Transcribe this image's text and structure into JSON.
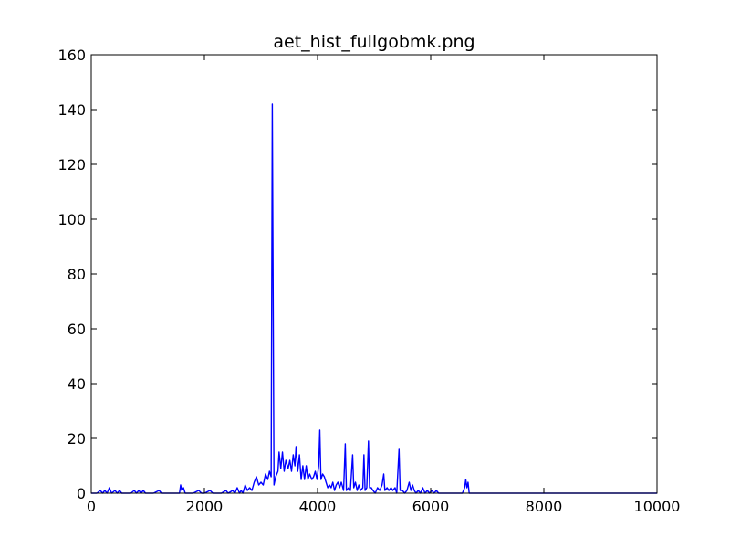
{
  "chart_data": {
    "type": "line",
    "title": "aet_hist_fullgobmk.png",
    "xlabel": "",
    "ylabel": "",
    "xlim": [
      0,
      10000
    ],
    "ylim": [
      0,
      160
    ],
    "x_ticks": [
      0,
      2000,
      4000,
      6000,
      8000,
      10000
    ],
    "y_ticks": [
      0,
      20,
      40,
      60,
      80,
      100,
      120,
      140,
      160
    ],
    "x_tick_labels": [
      "0",
      "2000",
      "4000",
      "6000",
      "8000",
      "10000"
    ],
    "y_tick_labels": [
      "0",
      "20",
      "40",
      "60",
      "80",
      "100",
      "120",
      "140",
      "160"
    ],
    "grid": false,
    "line_color": "#0000ff",
    "series": [
      {
        "points": [
          [
            0,
            0
          ],
          [
            100,
            0
          ],
          [
            160,
            1
          ],
          [
            200,
            0
          ],
          [
            240,
            1
          ],
          [
            280,
            0
          ],
          [
            320,
            2
          ],
          [
            360,
            0
          ],
          [
            420,
            1
          ],
          [
            460,
            0
          ],
          [
            500,
            1
          ],
          [
            540,
            0
          ],
          [
            600,
            0
          ],
          [
            700,
            0
          ],
          [
            760,
            1
          ],
          [
            800,
            0
          ],
          [
            840,
            1
          ],
          [
            880,
            0
          ],
          [
            920,
            1
          ],
          [
            960,
            0
          ],
          [
            1000,
            0
          ],
          [
            1100,
            0
          ],
          [
            1200,
            1
          ],
          [
            1240,
            0
          ],
          [
            1300,
            0
          ],
          [
            1400,
            0
          ],
          [
            1500,
            0
          ],
          [
            1560,
            0
          ],
          [
            1580,
            3
          ],
          [
            1600,
            1
          ],
          [
            1630,
            2
          ],
          [
            1660,
            0
          ],
          [
            1700,
            0
          ],
          [
            1800,
            0
          ],
          [
            1900,
            1
          ],
          [
            1950,
            0
          ],
          [
            2000,
            0
          ],
          [
            2100,
            1
          ],
          [
            2150,
            0
          ],
          [
            2200,
            0
          ],
          [
            2300,
            0
          ],
          [
            2380,
            1
          ],
          [
            2420,
            0
          ],
          [
            2500,
            1
          ],
          [
            2540,
            0
          ],
          [
            2580,
            2
          ],
          [
            2620,
            0
          ],
          [
            2650,
            1
          ],
          [
            2680,
            0
          ],
          [
            2720,
            3
          ],
          [
            2760,
            1
          ],
          [
            2800,
            2
          ],
          [
            2840,
            1
          ],
          [
            2880,
            4
          ],
          [
            2920,
            6
          ],
          [
            2960,
            3
          ],
          [
            3000,
            4
          ],
          [
            3040,
            3
          ],
          [
            3080,
            7
          ],
          [
            3120,
            5
          ],
          [
            3150,
            8
          ],
          [
            3180,
            6
          ],
          [
            3200,
            142
          ],
          [
            3230,
            3
          ],
          [
            3260,
            6
          ],
          [
            3300,
            8
          ],
          [
            3320,
            15
          ],
          [
            3350,
            9
          ],
          [
            3380,
            15
          ],
          [
            3410,
            8
          ],
          [
            3440,
            12
          ],
          [
            3480,
            9
          ],
          [
            3510,
            12
          ],
          [
            3540,
            8
          ],
          [
            3570,
            14
          ],
          [
            3600,
            10
          ],
          [
            3620,
            17
          ],
          [
            3650,
            8
          ],
          [
            3680,
            14
          ],
          [
            3710,
            5
          ],
          [
            3740,
            10
          ],
          [
            3770,
            5
          ],
          [
            3800,
            10
          ],
          [
            3830,
            5
          ],
          [
            3860,
            7
          ],
          [
            3900,
            5
          ],
          [
            3930,
            6
          ],
          [
            3960,
            8
          ],
          [
            3990,
            5
          ],
          [
            4020,
            10
          ],
          [
            4040,
            23
          ],
          [
            4060,
            5
          ],
          [
            4090,
            7
          ],
          [
            4120,
            6
          ],
          [
            4150,
            4
          ],
          [
            4180,
            2
          ],
          [
            4210,
            3
          ],
          [
            4240,
            2
          ],
          [
            4270,
            4
          ],
          [
            4300,
            1
          ],
          [
            4330,
            3
          ],
          [
            4360,
            4
          ],
          [
            4390,
            2
          ],
          [
            4420,
            4
          ],
          [
            4460,
            1
          ],
          [
            4490,
            18
          ],
          [
            4510,
            1
          ],
          [
            4550,
            2
          ],
          [
            4580,
            1
          ],
          [
            4620,
            14
          ],
          [
            4640,
            2
          ],
          [
            4670,
            4
          ],
          [
            4700,
            1
          ],
          [
            4730,
            3
          ],
          [
            4760,
            1
          ],
          [
            4800,
            2
          ],
          [
            4820,
            14
          ],
          [
            4840,
            1
          ],
          [
            4870,
            2
          ],
          [
            4900,
            19
          ],
          [
            4920,
            2
          ],
          [
            4950,
            2
          ],
          [
            4980,
            1
          ],
          [
            5020,
            0
          ],
          [
            5060,
            2
          ],
          [
            5100,
            1
          ],
          [
            5140,
            3
          ],
          [
            5170,
            7
          ],
          [
            5190,
            1
          ],
          [
            5230,
            2
          ],
          [
            5260,
            1
          ],
          [
            5300,
            2
          ],
          [
            5330,
            1
          ],
          [
            5370,
            2
          ],
          [
            5400,
            0
          ],
          [
            5440,
            16
          ],
          [
            5460,
            1
          ],
          [
            5500,
            1
          ],
          [
            5540,
            0
          ],
          [
            5580,
            1
          ],
          [
            5620,
            4
          ],
          [
            5650,
            1
          ],
          [
            5680,
            3
          ],
          [
            5710,
            1
          ],
          [
            5740,
            0
          ],
          [
            5780,
            1
          ],
          [
            5820,
            0
          ],
          [
            5860,
            2
          ],
          [
            5900,
            0
          ],
          [
            5940,
            1
          ],
          [
            5980,
            0
          ],
          [
            6020,
            1
          ],
          [
            6060,
            0
          ],
          [
            6100,
            1
          ],
          [
            6140,
            0
          ],
          [
            6200,
            0
          ],
          [
            6300,
            0
          ],
          [
            6400,
            0
          ],
          [
            6500,
            0
          ],
          [
            6560,
            0
          ],
          [
            6600,
            2
          ],
          [
            6620,
            5
          ],
          [
            6640,
            2
          ],
          [
            6660,
            4
          ],
          [
            6680,
            0
          ],
          [
            6700,
            0
          ],
          [
            6800,
            0
          ],
          [
            7000,
            0
          ],
          [
            8000,
            0
          ],
          [
            9000,
            0
          ],
          [
            10000,
            0
          ]
        ]
      }
    ]
  }
}
